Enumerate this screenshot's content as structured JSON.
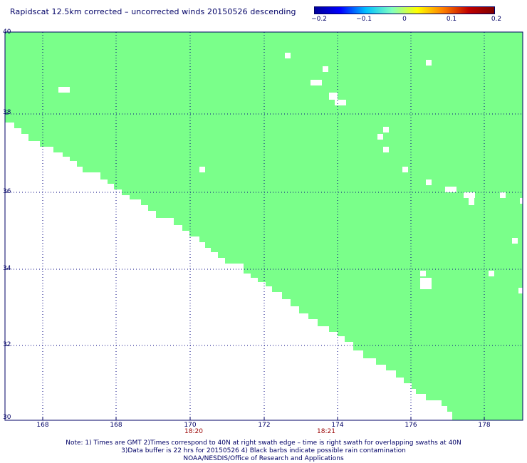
{
  "title": "Rapidscat 12.5km corrected – uncorrected winds 20150526 descending",
  "colorbar": {
    "labels": [
      "−0.2",
      "−0.1",
      "0",
      "0.1",
      "0.2"
    ],
    "min": -0.2,
    "max": 0.2,
    "gradient": [
      "#00009a",
      "#0000ff",
      "#00c0ff",
      "#80ffc0",
      "#ffff00",
      "#ff8000",
      "#c00000",
      "#800000"
    ]
  },
  "map": {
    "lat_range": [
      30,
      40
    ],
    "lon_range": [
      167,
      179
    ],
    "lat_labels": [
      "40",
      "38",
      "36",
      "34",
      "32",
      "30"
    ],
    "lon_labels": [
      "168",
      "168",
      "170",
      "172",
      "174",
      "176",
      "178"
    ],
    "time_labels": [
      "18:20",
      "18:21"
    ],
    "swath_color": "#7aff8a",
    "grid_color": "#000080"
  },
  "notes": [
    "Note: 1) Times are GMT 2)Times correspond to 40N at right swath edge – time is right swath for overlapping swaths at 40N",
    "3)Data buffer is 22 hrs for 20150526 4) Black barbs indicate possible rain contamination",
    "NOAA/NESDIS/Office of Research and Applications"
  ]
}
